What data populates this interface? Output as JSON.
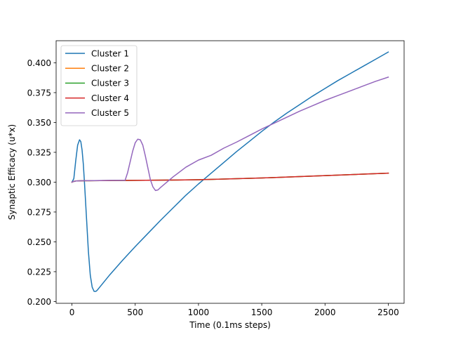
{
  "chart_data": {
    "type": "line",
    "title": "",
    "xlabel": "Time (0.1ms steps)",
    "ylabel": "Synaptic Efficacy (u*x)",
    "xlim": [
      -125,
      2625
    ],
    "ylim": [
      0.1985,
      0.4185
    ],
    "xticks": [
      0,
      500,
      1000,
      1500,
      2000,
      2500
    ],
    "xtick_labels": [
      "0",
      "500",
      "1000",
      "1500",
      "2000",
      "2500"
    ],
    "yticks": [
      0.2,
      0.225,
      0.25,
      0.275,
      0.3,
      0.325,
      0.35,
      0.375,
      0.4
    ],
    "ytick_labels": [
      "0.200",
      "0.225",
      "0.250",
      "0.275",
      "0.300",
      "0.325",
      "0.350",
      "0.375",
      "0.400"
    ],
    "grid": false,
    "legend_position": "top-left",
    "series": [
      {
        "name": "Cluster 1",
        "color": "#1f77b4",
        "x": [
          0,
          15,
          30,
          45,
          60,
          70,
          80,
          90,
          100,
          115,
          130,
          145,
          160,
          175,
          190,
          200,
          300,
          400,
          500,
          600,
          700,
          800,
          900,
          1000,
          1100,
          1200,
          1300,
          1400,
          1500,
          1600,
          1700,
          1800,
          1900,
          2000,
          2100,
          2200,
          2300,
          2400,
          2500
        ],
        "values": [
          0.3,
          0.303,
          0.318,
          0.331,
          0.3355,
          0.334,
          0.327,
          0.315,
          0.298,
          0.27,
          0.242,
          0.222,
          0.212,
          0.2085,
          0.2085,
          0.2095,
          0.2225,
          0.2345,
          0.246,
          0.257,
          0.268,
          0.2785,
          0.289,
          0.2985,
          0.3075,
          0.3165,
          0.3255,
          0.334,
          0.3425,
          0.3505,
          0.358,
          0.365,
          0.372,
          0.3785,
          0.385,
          0.391,
          0.397,
          0.403,
          0.409
        ]
      },
      {
        "name": "Cluster 2",
        "color": "#ff7f0e",
        "x": [
          0,
          10,
          30,
          100,
          500,
          1000,
          1500,
          2000,
          2500
        ],
        "values": [
          0.3,
          0.3005,
          0.301,
          0.3012,
          0.3015,
          0.302,
          0.3035,
          0.3055,
          0.3075
        ]
      },
      {
        "name": "Cluster 3",
        "color": "#2ca02c",
        "x": [
          0,
          10,
          30,
          100,
          500,
          1000,
          1500,
          2000,
          2500
        ],
        "values": [
          0.3,
          0.3005,
          0.301,
          0.3012,
          0.3015,
          0.302,
          0.3035,
          0.3055,
          0.3075
        ]
      },
      {
        "name": "Cluster 4",
        "color": "#d62728",
        "x": [
          0,
          10,
          30,
          100,
          500,
          1000,
          1500,
          2000,
          2500
        ],
        "values": [
          0.3,
          0.3005,
          0.301,
          0.3012,
          0.3015,
          0.302,
          0.3035,
          0.3055,
          0.3075
        ]
      },
      {
        "name": "Cluster 5",
        "color": "#9467bd",
        "x": [
          0,
          10,
          30,
          100,
          300,
          420,
          440,
          460,
          480,
          500,
          520,
          540,
          560,
          580,
          600,
          620,
          640,
          660,
          680,
          700,
          800,
          900,
          1000,
          1100,
          1200,
          1300,
          1400,
          1500,
          1600,
          1700,
          1800,
          1900,
          2000,
          2100,
          2200,
          2300,
          2400,
          2500
        ],
        "values": [
          0.3,
          0.3005,
          0.301,
          0.3012,
          0.3015,
          0.3015,
          0.308,
          0.317,
          0.326,
          0.333,
          0.336,
          0.3355,
          0.331,
          0.322,
          0.312,
          0.302,
          0.296,
          0.293,
          0.2935,
          0.2955,
          0.3045,
          0.3125,
          0.3185,
          0.3225,
          0.3285,
          0.3335,
          0.339,
          0.3445,
          0.3495,
          0.3545,
          0.3595,
          0.364,
          0.3685,
          0.3725,
          0.3765,
          0.3805,
          0.3845,
          0.388
        ]
      }
    ]
  }
}
